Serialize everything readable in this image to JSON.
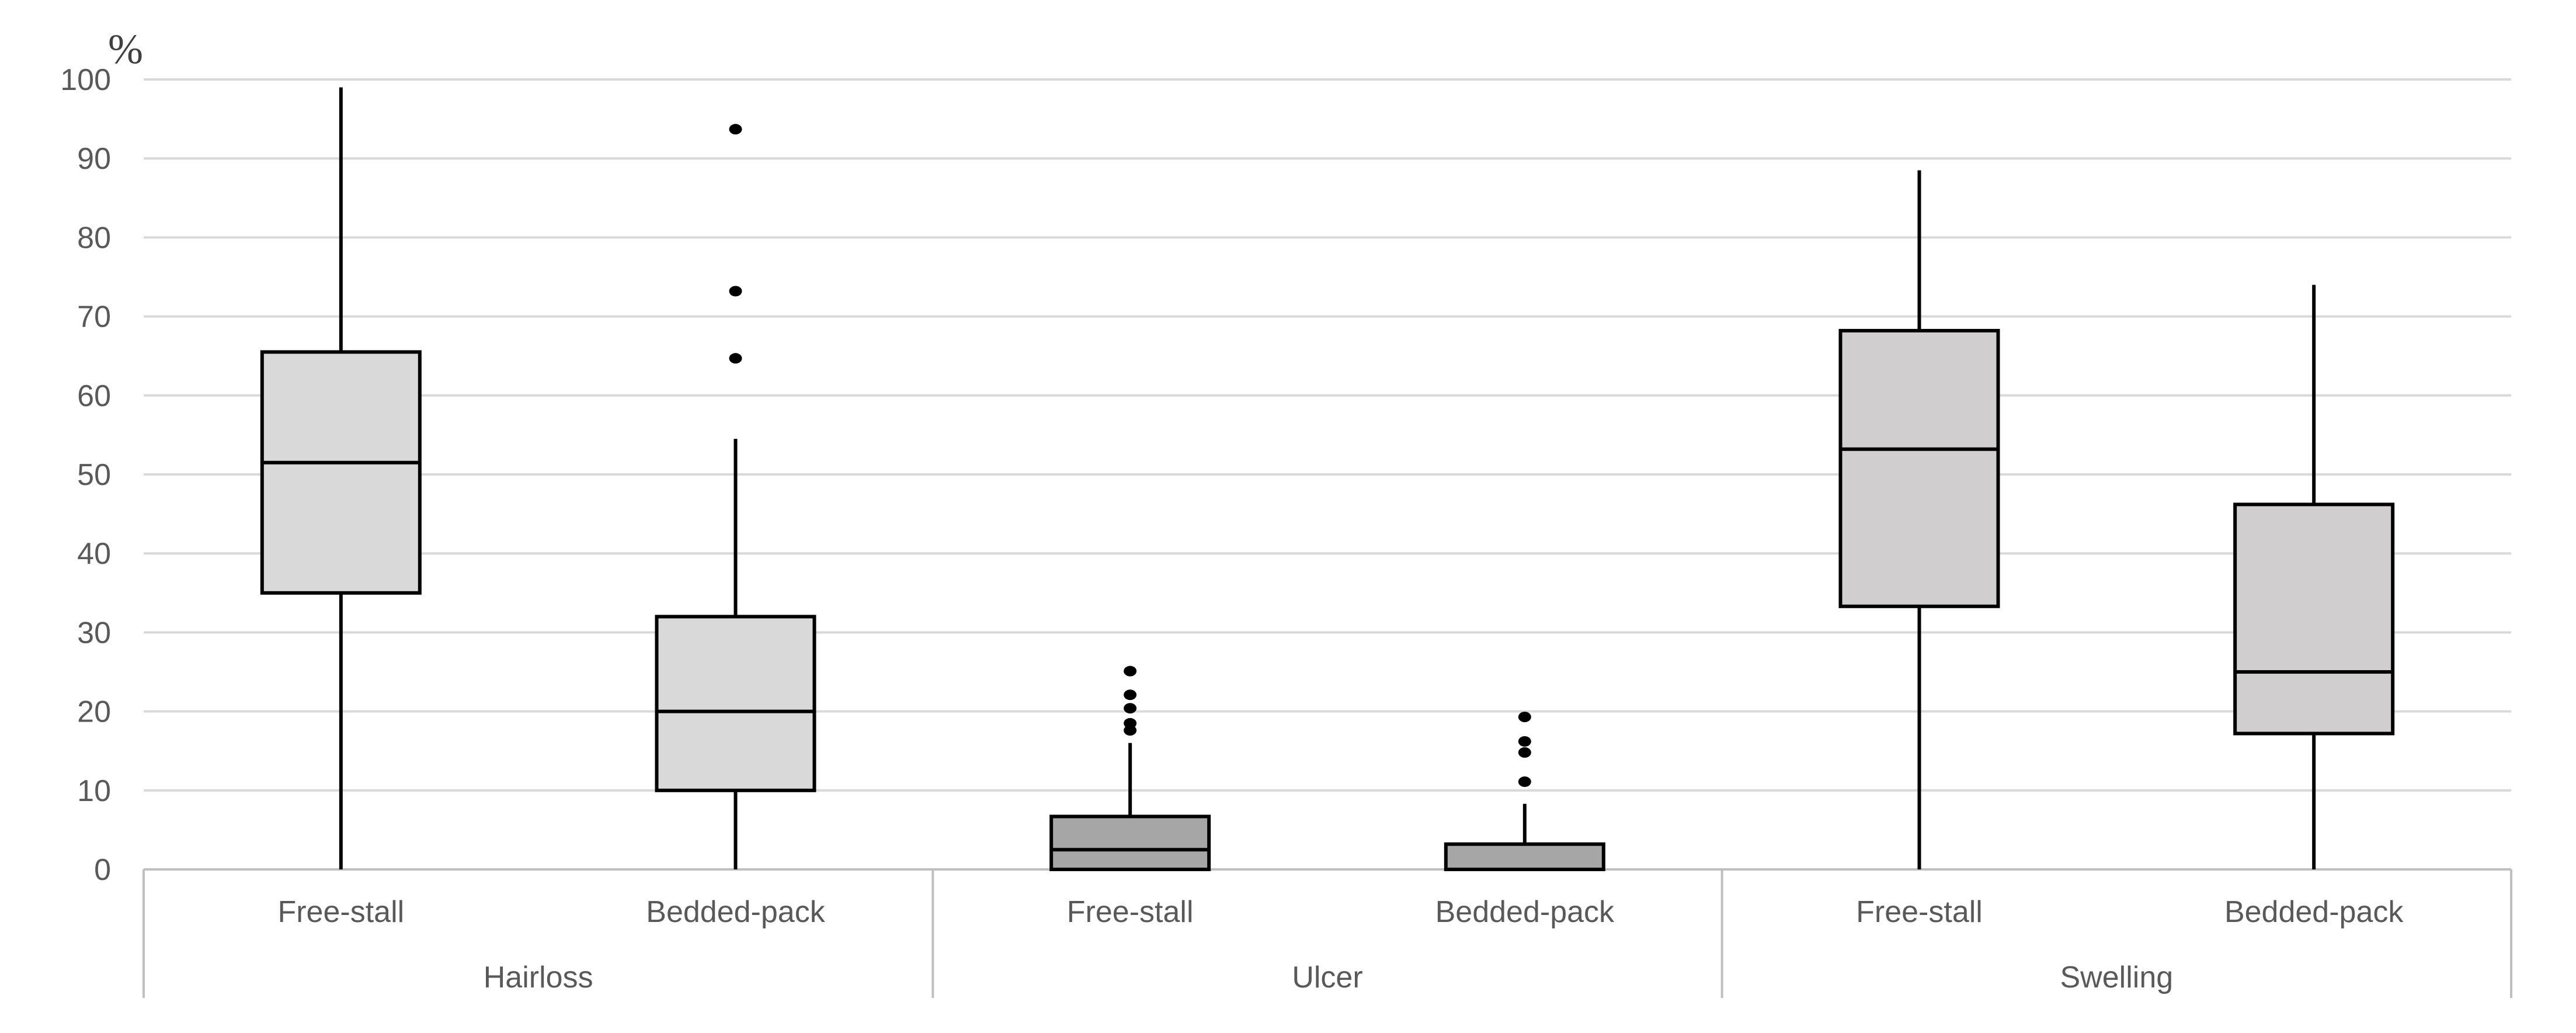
{
  "chart_data": {
    "type": "boxplot",
    "ylabel": "%",
    "ylim": [
      0,
      100
    ],
    "yticks": [
      "0",
      "10",
      "20",
      "30",
      "40",
      "50",
      "60",
      "70",
      "80",
      "90",
      "100"
    ],
    "grid": true,
    "groups": [
      {
        "label": "Hairloss",
        "categories": [
          "Free-stall",
          "Bedded-pack"
        ]
      },
      {
        "label": "Ulcer",
        "categories": [
          "Free-stall",
          "Bedded-pack"
        ]
      },
      {
        "label": "Swelling",
        "categories": [
          "Free-stall",
          "Bedded-pack"
        ]
      }
    ],
    "boxes": [
      {
        "group": "Hairloss",
        "category": "Free-stall",
        "min": 0,
        "q1": 35,
        "median": 51.5,
        "q3": 65.5,
        "max": 99,
        "outliers": [],
        "color": "#d9d9d9"
      },
      {
        "group": "Hairloss",
        "category": "Bedded-pack",
        "min": 0,
        "q1": 10,
        "median": 20,
        "q3": 32,
        "max": 54.5,
        "outliers": [
          64.7,
          73.2,
          93.7
        ],
        "color": "#d9d9d9"
      },
      {
        "group": "Ulcer",
        "category": "Free-stall",
        "min": 0,
        "q1": 0,
        "median": 2.5,
        "q3": 6.7,
        "max": 16,
        "outliers": [
          17.6,
          18.5,
          20.4,
          22.1,
          25.1
        ],
        "color": "#a6a6a6"
      },
      {
        "group": "Ulcer",
        "category": "Bedded-pack",
        "min": 0,
        "q1": 0,
        "median": 0,
        "q3": 3.2,
        "max": 8.3,
        "outliers": [
          11.1,
          14.8,
          16.2,
          19.3
        ],
        "color": "#a6a6a6"
      },
      {
        "group": "Swelling",
        "category": "Free-stall",
        "min": 0,
        "q1": 33.3,
        "median": 53.2,
        "q3": 68.2,
        "max": 88.5,
        "outliers": [],
        "color": "#d0cece"
      },
      {
        "group": "Swelling",
        "category": "Bedded-pack",
        "min": 0,
        "q1": 17.2,
        "median": 25,
        "q3": 46.2,
        "max": 74,
        "outliers": [],
        "color": "#d0cece"
      }
    ],
    "colors": {
      "grid": "#d9d9d9",
      "axis": "#bfbfbf",
      "stroke": "#000000",
      "text": "#595959"
    }
  }
}
